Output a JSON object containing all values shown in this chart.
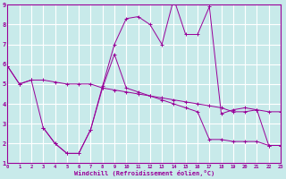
{
  "xlabel": "Windchill (Refroidissement éolien,°C)",
  "background_color": "#c8eaea",
  "grid_color": "#ffffff",
  "line_color": "#990099",
  "xmin": 0,
  "xmax": 23,
  "ymin": 1,
  "ymax": 9,
  "xtick_labels": [
    "0",
    "1",
    "2",
    "3",
    "4",
    "5",
    "6",
    "7",
    "8",
    "9",
    "10",
    "11",
    "12",
    "13",
    "14",
    "15",
    "16",
    "17",
    "18",
    "19",
    "20",
    "21",
    "22",
    "23"
  ],
  "ytick_labels": [
    "1",
    "2",
    "3",
    "4",
    "5",
    "6",
    "7",
    "8",
    "9"
  ],
  "series1_x": [
    0,
    1,
    2,
    3,
    4,
    5,
    6,
    7,
    8,
    9,
    10,
    11,
    12,
    13,
    14,
    15,
    16,
    17,
    18,
    19,
    20,
    21,
    22,
    23
  ],
  "series1_y": [
    5.9,
    5.0,
    5.2,
    5.2,
    5.1,
    5.0,
    5.0,
    5.0,
    4.8,
    4.7,
    4.6,
    4.5,
    4.4,
    4.3,
    4.2,
    4.1,
    4.0,
    3.9,
    3.8,
    3.6,
    3.6,
    3.7,
    3.6,
    3.6
  ],
  "series2_x": [
    0,
    1,
    2,
    3,
    4,
    5,
    6,
    7,
    8,
    9,
    10,
    11,
    12,
    13,
    14,
    15,
    16,
    17,
    18,
    19,
    20,
    21,
    22,
    23
  ],
  "series2_y": [
    5.9,
    5.0,
    5.2,
    2.8,
    2.0,
    1.5,
    1.5,
    2.7,
    4.9,
    7.0,
    8.3,
    8.4,
    8.0,
    7.0,
    9.3,
    7.5,
    7.5,
    8.9,
    3.5,
    3.7,
    3.8,
    3.7,
    1.9,
    1.9
  ],
  "series3_x": [
    3,
    4,
    5,
    6,
    7,
    8,
    9,
    10,
    11,
    12,
    13,
    14,
    15,
    16,
    17,
    18,
    19,
    20,
    21,
    22,
    23
  ],
  "series3_y": [
    2.8,
    2.0,
    1.5,
    1.5,
    2.7,
    4.8,
    6.5,
    4.8,
    4.6,
    4.4,
    4.2,
    4.0,
    3.8,
    3.6,
    2.2,
    2.2,
    2.1,
    2.1,
    2.1,
    1.9,
    1.9
  ]
}
